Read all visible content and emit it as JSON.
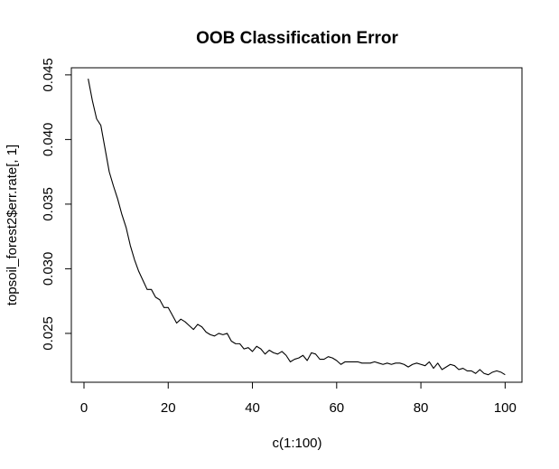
{
  "chart_data": {
    "type": "line",
    "title": "OOB Classification Error",
    "xlabel": "c(1:100)",
    "ylabel": "topsoil_forest2$err.rate[, 1]",
    "xlim": [
      -3,
      104
    ],
    "ylim": [
      0.02122,
      0.04555
    ],
    "x_ticks": [
      0,
      20,
      40,
      60,
      80,
      100
    ],
    "x_tick_labels": [
      "0",
      "20",
      "40",
      "60",
      "80",
      "100"
    ],
    "y_ticks": [
      0.025,
      0.03,
      0.035,
      0.04,
      0.045
    ],
    "y_tick_labels": [
      "0.025",
      "0.030",
      "0.035",
      "0.040",
      "0.045"
    ],
    "grid": false,
    "line_color": "#000000",
    "x": [
      1,
      2,
      3,
      4,
      5,
      6,
      7,
      8,
      9,
      10,
      11,
      12,
      13,
      14,
      15,
      16,
      17,
      18,
      19,
      20,
      21,
      22,
      23,
      24,
      25,
      26,
      27,
      28,
      29,
      30,
      31,
      32,
      33,
      34,
      35,
      36,
      37,
      38,
      39,
      40,
      41,
      42,
      43,
      44,
      45,
      46,
      47,
      48,
      49,
      50,
      51,
      52,
      53,
      54,
      55,
      56,
      57,
      58,
      59,
      60,
      61,
      62,
      63,
      64,
      65,
      66,
      67,
      68,
      69,
      70,
      71,
      72,
      73,
      74,
      75,
      76,
      77,
      78,
      79,
      80,
      81,
      82,
      83,
      84,
      85,
      86,
      87,
      88,
      89,
      90,
      91,
      92,
      93,
      94,
      95,
      96,
      97,
      98,
      99,
      100
    ],
    "y": [
      0.0447,
      0.043,
      0.0416,
      0.0411,
      0.0393,
      0.0375,
      0.0364,
      0.0354,
      0.0342,
      0.0332,
      0.0318,
      0.0307,
      0.0298,
      0.0291,
      0.0284,
      0.0284,
      0.0278,
      0.0276,
      0.027,
      0.027,
      0.0264,
      0.0258,
      0.0261,
      0.0259,
      0.0256,
      0.0253,
      0.0257,
      0.0255,
      0.0251,
      0.0249,
      0.0248,
      0.025,
      0.0249,
      0.025,
      0.0244,
      0.0242,
      0.0242,
      0.0238,
      0.0239,
      0.0236,
      0.024,
      0.0238,
      0.0234,
      0.0237,
      0.0235,
      0.0234,
      0.0236,
      0.0233,
      0.0228,
      0.023,
      0.0231,
      0.0233,
      0.0229,
      0.0235,
      0.0234,
      0.023,
      0.023,
      0.0232,
      0.0231,
      0.0229,
      0.0226,
      0.0228,
      0.0228,
      0.0228,
      0.0228,
      0.0227,
      0.0227,
      0.0227,
      0.0228,
      0.0227,
      0.0226,
      0.0227,
      0.0226,
      0.0227,
      0.0227,
      0.0226,
      0.0224,
      0.0226,
      0.0227,
      0.0226,
      0.0225,
      0.0228,
      0.0223,
      0.0227,
      0.0222,
      0.0224,
      0.0226,
      0.0225,
      0.0222,
      0.0223,
      0.0221,
      0.0221,
      0.0219,
      0.0222,
      0.0219,
      0.0218,
      0.022,
      0.0221,
      0.022,
      0.0218
    ]
  }
}
